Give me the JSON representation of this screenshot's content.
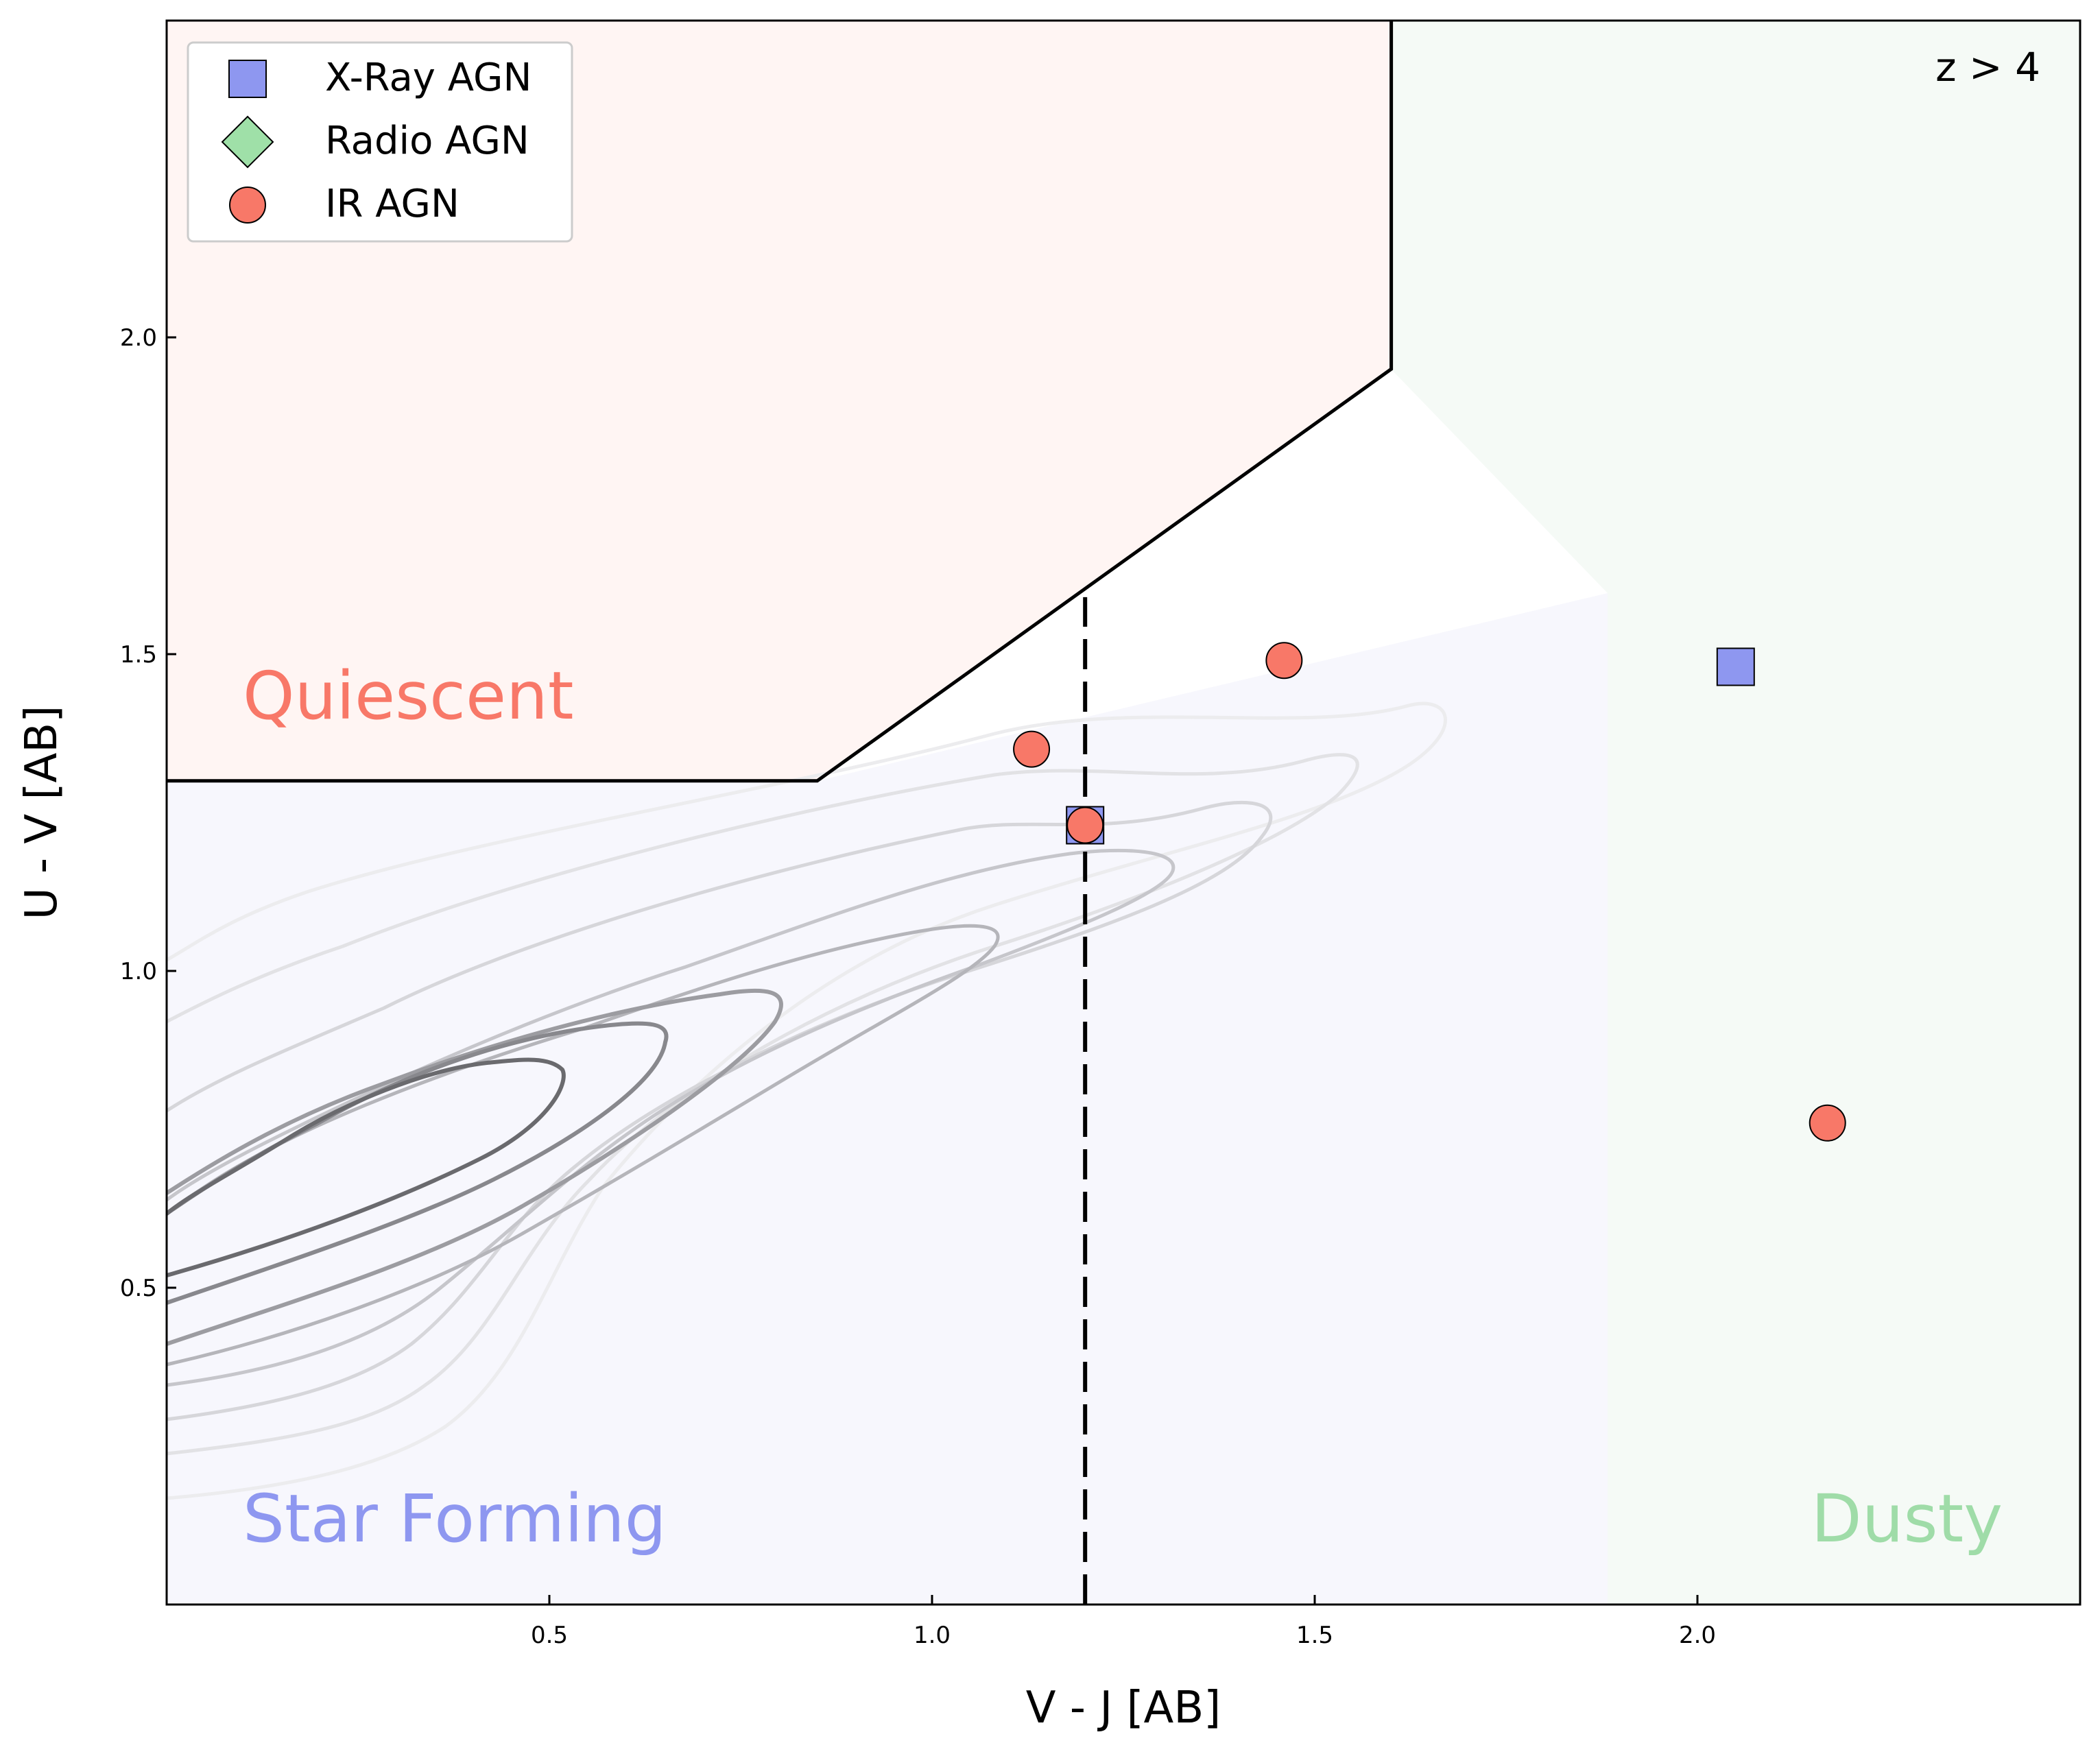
{
  "chart_data": {
    "type": "scatter",
    "annotation": "z > 4",
    "xlabel": "V - J [AB]",
    "ylabel": "U - V [AB]",
    "xlim": [
      0.0,
      2.5
    ],
    "ylim": [
      0.0,
      2.5
    ],
    "xticks": [
      "0.5",
      "1.0",
      "1.5",
      "2.0"
    ],
    "yticks": [
      "0.5",
      "1.0",
      "1.5",
      "2.0"
    ],
    "grid": false,
    "legend_position": "top-left",
    "regions": [
      {
        "name": "Quiescent",
        "color": "#f87868",
        "fill": "#fff5f3"
      },
      {
        "name": "Star Forming",
        "color": "#8e97f0",
        "fill": "#f7f7fd"
      },
      {
        "name": "Dusty",
        "color": "#9fdca8",
        "fill": "#f5faf6"
      }
    ],
    "quiescent_boundary": {
      "x": [
        0.0,
        0.85,
        1.6,
        1.6
      ],
      "y": [
        1.3,
        1.3,
        1.95,
        2.5
      ]
    },
    "dusty_divider": {
      "x": 1.2,
      "y_range": [
        0.0,
        1.59
      ]
    },
    "series": [
      {
        "name": "X-Ray AGN",
        "marker": "square",
        "color": "#8e97f0",
        "x": [
          1.2,
          2.05
        ],
        "y": [
          1.23,
          1.48
        ]
      },
      {
        "name": "Radio AGN",
        "marker": "diamond",
        "color": "#9fe0a8",
        "x": [],
        "y": []
      },
      {
        "name": "IR AGN",
        "marker": "circle",
        "color": "#f87868",
        "x": [
          1.13,
          1.2,
          1.46,
          2.17
        ],
        "y": [
          1.35,
          1.23,
          1.49,
          0.76
        ]
      }
    ]
  }
}
